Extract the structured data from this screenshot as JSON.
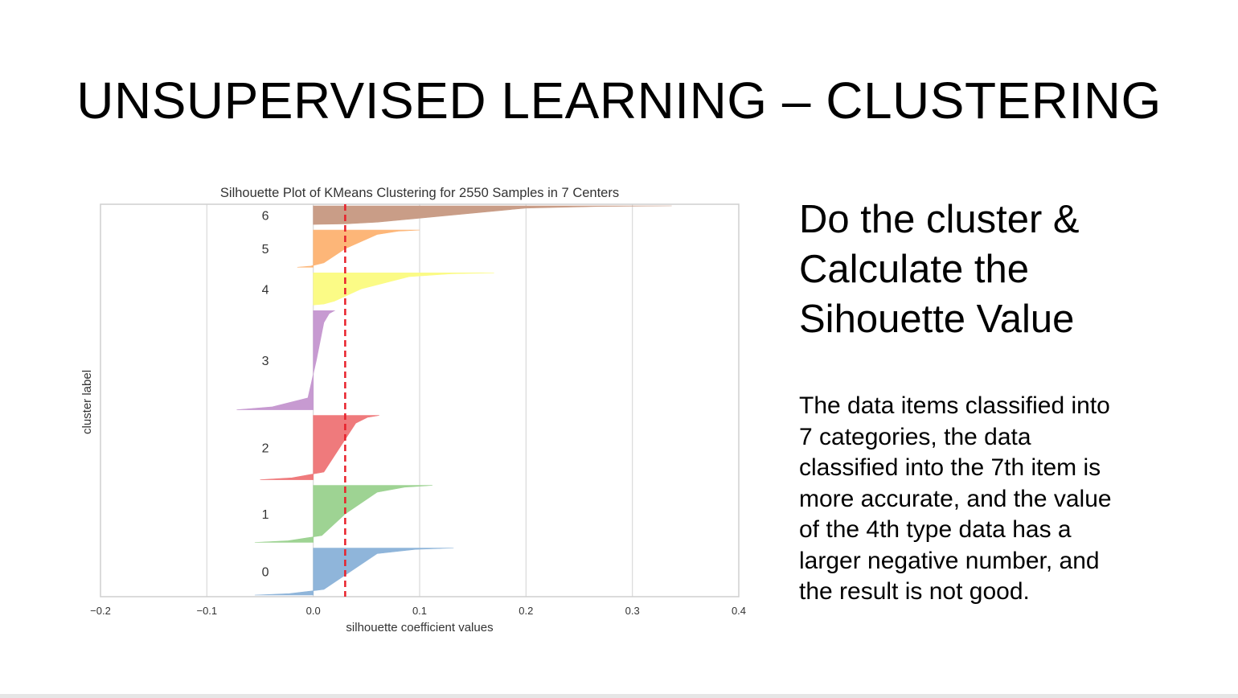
{
  "slide": {
    "title": "UNSUPERVISED LEARNING – CLUSTERING",
    "heading_lines": [
      "Do the cluster &",
      "Calculate the",
      "Sihouette Value"
    ],
    "body_lines": [
      "The data items classified into",
      "7 categories, the data",
      "classified into the 7th item is",
      "more accurate, and the value",
      "of the 4th type data has a",
      "larger negative number, and",
      "the result is not good."
    ]
  },
  "chart_data": {
    "type": "area",
    "title": "Silhouette Plot of KMeans Clustering for 2550 Samples in 7 Centers",
    "xlabel": "silhouette coefficient values",
    "ylabel": "cluster label",
    "xlim": [
      -0.2,
      0.4
    ],
    "xticks": [
      -0.2,
      -0.1,
      0.0,
      0.1,
      0.2,
      0.3,
      0.4
    ],
    "xtick_labels": [
      "−0.2",
      "−0.1",
      "0.0",
      "0.1",
      "0.2",
      "0.3",
      "0.4"
    ],
    "grid": true,
    "average_silhouette": 0.03,
    "average_line_color": "#e8212b",
    "clusters": [
      {
        "label": "0",
        "color": "#8fb5da",
        "max": 0.132,
        "min": -0.055,
        "p90": 0.06,
        "p50": 0.035,
        "p10": 0.01
      },
      {
        "label": "1",
        "color": "#9ed393",
        "max": 0.112,
        "min": -0.055,
        "p90": 0.06,
        "p50": 0.03,
        "p10": 0.008
      },
      {
        "label": "2",
        "color": "#ef7a7c",
        "max": 0.062,
        "min": -0.05,
        "p90": 0.04,
        "p50": 0.025,
        "p10": 0.01
      },
      {
        "label": "3",
        "color": "#c79ad1",
        "max": 0.02,
        "min": -0.072,
        "p90": 0.01,
        "p50": 0.003,
        "p10": -0.005
      },
      {
        "label": "4",
        "color": "#fbfb86",
        "max": 0.17,
        "min": 0.0,
        "p90": 0.09,
        "p50": 0.045,
        "p10": 0.02
      },
      {
        "label": "5",
        "color": "#fdb678",
        "max": 0.1,
        "min": -0.015,
        "p90": 0.06,
        "p50": 0.03,
        "p10": 0.01
      },
      {
        "label": "6",
        "color": "#c99d87",
        "max": 0.337,
        "min": 0.0,
        "p90": 0.2,
        "p50": 0.13,
        "p10": 0.06
      }
    ]
  }
}
